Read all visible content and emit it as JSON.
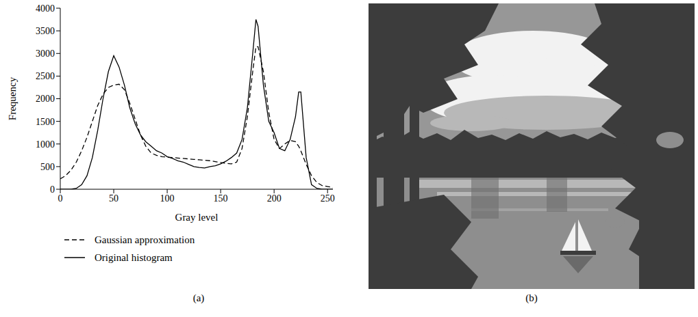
{
  "chart_data": {
    "type": "line",
    "panel": "(a)",
    "x_label": "Gray level",
    "y_label": "Frequency",
    "x": [
      0,
      5,
      10,
      15,
      20,
      25,
      30,
      35,
      40,
      45,
      50,
      55,
      60,
      65,
      70,
      75,
      80,
      85,
      90,
      95,
      100,
      105,
      110,
      115,
      120,
      125,
      130,
      135,
      140,
      145,
      150,
      155,
      160,
      165,
      170,
      175,
      180,
      183,
      185,
      190,
      195,
      200,
      205,
      210,
      215,
      220,
      223,
      225,
      230,
      235,
      240,
      245,
      250,
      255
    ],
    "series": [
      {
        "name": "Gaussian approximation",
        "color": "#000000",
        "line_style": "dashed",
        "values": [
          230,
          300,
          420,
          600,
          850,
          1150,
          1500,
          1850,
          2100,
          2250,
          2300,
          2320,
          2200,
          1900,
          1550,
          1200,
          950,
          800,
          750,
          720,
          710,
          700,
          690,
          680,
          670,
          660,
          650,
          640,
          630,
          610,
          590,
          570,
          560,
          600,
          900,
          1600,
          2600,
          3150,
          3150,
          2600,
          1700,
          1100,
          900,
          1000,
          1080,
          1050,
          950,
          850,
          550,
          300,
          150,
          80,
          60,
          40
        ]
      },
      {
        "name": "Original histogram",
        "color": "#000000",
        "line_style": "solid",
        "values": [
          0,
          0,
          0,
          20,
          100,
          300,
          700,
          1300,
          2000,
          2600,
          2950,
          2700,
          2300,
          1800,
          1450,
          1200,
          1050,
          950,
          850,
          800,
          720,
          680,
          630,
          600,
          550,
          500,
          480,
          470,
          500,
          520,
          560,
          620,
          700,
          800,
          1100,
          1800,
          3000,
          3750,
          3600,
          2300,
          1500,
          1250,
          900,
          850,
          1100,
          1600,
          2150,
          2150,
          700,
          100,
          20,
          0,
          0,
          0
        ]
      }
    ],
    "xlim": [
      0,
      255
    ],
    "xticks": [
      0,
      50,
      100,
      150,
      200,
      250
    ],
    "ylim": [
      0,
      4000
    ],
    "yticks": [
      0,
      500,
      1000,
      1500,
      2000,
      2500,
      3000,
      3500,
      4000
    ],
    "legend": "bottom"
  },
  "image": {
    "panel": "(b)"
  }
}
